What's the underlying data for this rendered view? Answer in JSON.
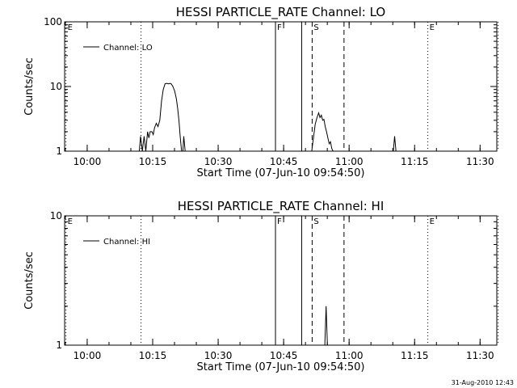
{
  "chart_data": [
    {
      "type": "line",
      "title": "HESSI PARTICLE_RATE Channel: LO",
      "xlabel": "Start Time (07-Jun-10 09:54:50)",
      "ylabel": "Counts/sec",
      "yscale": "log",
      "ylim": [
        1,
        100
      ],
      "xlim_min_after_start": [
        0,
        99
      ],
      "x_ticks": [
        {
          "min": 5.17,
          "label": "10:00"
        },
        {
          "min": 20.17,
          "label": "10:15"
        },
        {
          "min": 35.17,
          "label": "10:30"
        },
        {
          "min": 50.17,
          "label": "10:45"
        },
        {
          "min": 65.17,
          "label": "11:00"
        },
        {
          "min": 80.17,
          "label": "11:15"
        },
        {
          "min": 95.17,
          "label": "11:30"
        }
      ],
      "y_ticks": [
        {
          "value": 1,
          "label": "1"
        },
        {
          "value": 10,
          "label": "10"
        },
        {
          "value": 100,
          "label": "100"
        }
      ],
      "legend": {
        "label": "Channel: LO",
        "position": "top-left"
      },
      "markers": [
        {
          "label": "E",
          "min": 0.3,
          "style": "dotted"
        },
        {
          "min": 17.5,
          "style": "dotted"
        },
        {
          "label": "F",
          "min": 48.3,
          "style": "solid"
        },
        {
          "min": 54.3,
          "style": "solid"
        },
        {
          "label": "S",
          "min": 56.7,
          "style": "dashed"
        },
        {
          "min": 64.0,
          "style": "dashed"
        },
        {
          "label": "E",
          "min": 83.2,
          "style": "dotted"
        },
        {
          "min": 99.3,
          "style": "dotted"
        }
      ],
      "series": [
        {
          "name": "Channel: LO",
          "x": [
            17.1,
            17.4,
            17.8,
            18.2,
            18.6,
            19.0,
            19.3,
            19.6,
            20.0,
            20.3,
            20.6,
            21.0,
            21.4,
            21.8,
            22.2,
            22.6,
            23.0,
            23.4,
            23.8,
            24.1,
            24.4,
            24.8,
            25.2,
            25.6,
            25.9,
            26.2,
            26.5,
            26.8,
            27.1,
            27.3,
            27.6,
            27.9
          ],
          "y": [
            1.0,
            1.7,
            1.0,
            1.7,
            1.0,
            2.0,
            1.6,
            2.0,
            2.0,
            1.8,
            2.3,
            2.7,
            2.4,
            3.0,
            6.0,
            9.0,
            11.0,
            11.2,
            11.0,
            11.2,
            11.0,
            10.0,
            8.5,
            6.5,
            4.5,
            2.9,
            1.6,
            1.0,
            1.0,
            1.7,
            1.0,
            1.0
          ],
          "segments": [
            {
              "x": [
                56.6,
                57.0,
                57.4,
                57.8,
                58.2,
                58.5,
                58.8,
                59.1,
                59.4,
                59.7,
                60.0,
                60.3,
                60.6,
                60.9,
                61.2,
                61.5,
                61.8
              ],
              "y": [
                1.0,
                1.6,
                2.6,
                3.3,
                3.9,
                3.3,
                3.6,
                3.0,
                3.1,
                2.4,
                2.0,
                1.6,
                1.3,
                1.4,
                1.1,
                1.0,
                1.0
              ]
            },
            {
              "x": [
                75.3,
                75.6,
                75.9
              ],
              "y": [
                1.0,
                1.7,
                1.0
              ]
            }
          ]
        }
      ]
    },
    {
      "type": "line",
      "title": "HESSI PARTICLE_RATE Channel: HI",
      "xlabel": "Start Time (07-Jun-10 09:54:50)",
      "ylabel": "Counts/sec",
      "yscale": "log",
      "ylim": [
        1,
        10
      ],
      "xlim_min_after_start": [
        0,
        99
      ],
      "x_ticks": [
        {
          "min": 5.17,
          "label": "10:00"
        },
        {
          "min": 20.17,
          "label": "10:15"
        },
        {
          "min": 35.17,
          "label": "10:30"
        },
        {
          "min": 50.17,
          "label": "10:45"
        },
        {
          "min": 65.17,
          "label": "11:00"
        },
        {
          "min": 80.17,
          "label": "11:15"
        },
        {
          "min": 95.17,
          "label": "11:30"
        }
      ],
      "y_ticks": [
        {
          "value": 1,
          "label": "1"
        },
        {
          "value": 10,
          "label": "10"
        }
      ],
      "legend": {
        "label": "Channel: HI",
        "position": "top-left"
      },
      "markers": [
        {
          "label": "E",
          "min": 0.3,
          "style": "dotted"
        },
        {
          "min": 17.5,
          "style": "dotted"
        },
        {
          "label": "F",
          "min": 48.3,
          "style": "solid"
        },
        {
          "min": 54.3,
          "style": "solid"
        },
        {
          "label": "S",
          "min": 56.7,
          "style": "dashed"
        },
        {
          "min": 64.0,
          "style": "dashed"
        },
        {
          "label": "E",
          "min": 83.2,
          "style": "dotted"
        },
        {
          "min": 99.3,
          "style": "dotted"
        }
      ],
      "series": [
        {
          "name": "Channel: HI",
          "x": [
            59.3,
            59.6,
            59.9,
            60.2,
            60.4
          ],
          "y": [
            1.0,
            1.0,
            2.0,
            1.0,
            1.0
          ]
        }
      ]
    }
  ],
  "footer": {
    "timestamp": "31-Aug-2010 12:43"
  }
}
